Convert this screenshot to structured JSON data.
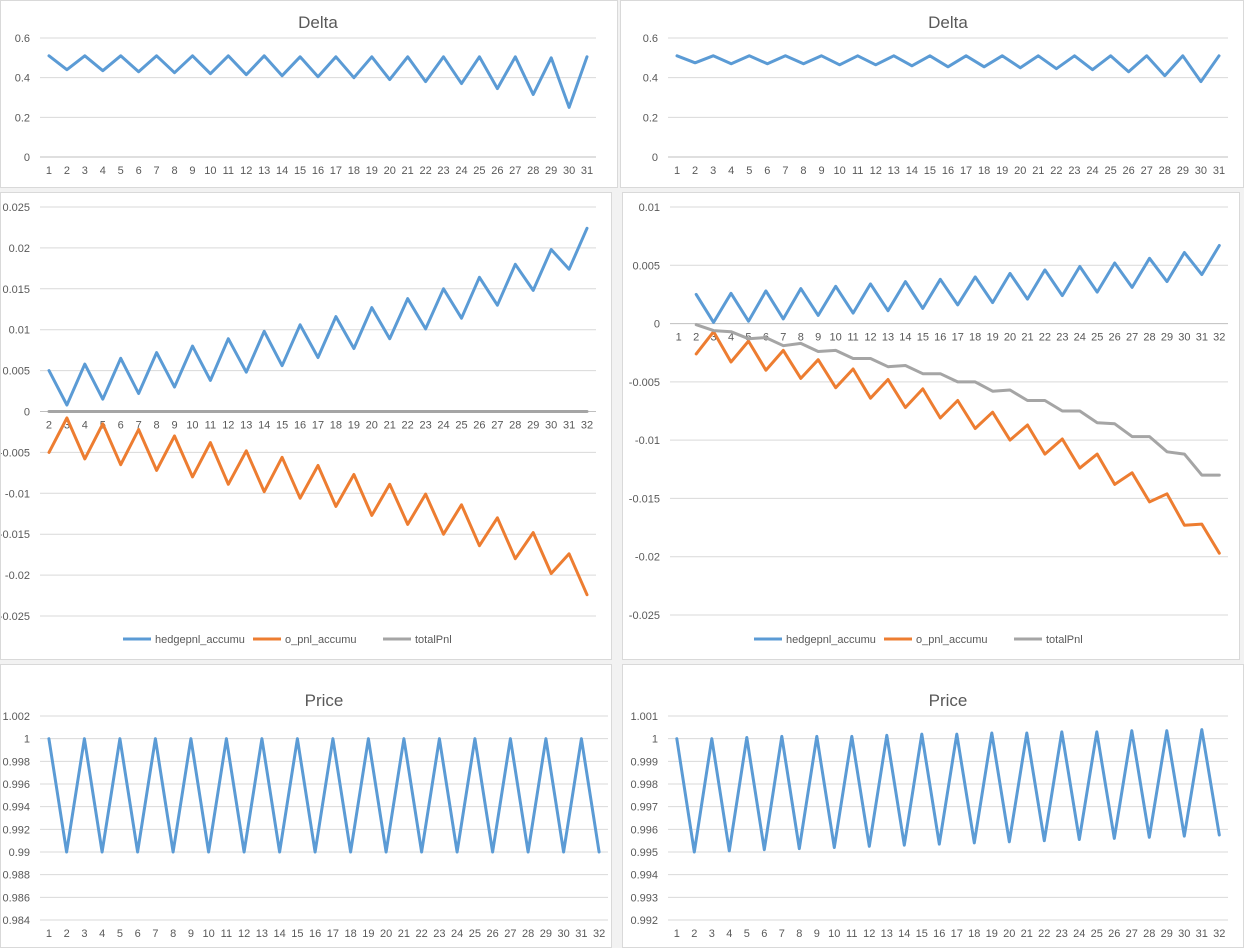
{
  "chart_data": [
    {
      "id": "delta-left",
      "type": "line",
      "title": "Delta",
      "xlabel": "",
      "ylabel": "",
      "categories": [
        "1",
        "2",
        "3",
        "4",
        "5",
        "6",
        "7",
        "8",
        "9",
        "10",
        "11",
        "12",
        "13",
        "14",
        "15",
        "16",
        "17",
        "18",
        "19",
        "20",
        "21",
        "22",
        "23",
        "24",
        "25",
        "26",
        "27",
        "28",
        "29",
        "30",
        "31"
      ],
      "ylim": [
        0,
        0.6
      ],
      "yticks": [
        0,
        0.2,
        0.4,
        0.6
      ],
      "ytick_labels": [
        "0",
        "0.2",
        "0.4",
        "0.6"
      ],
      "grid": true,
      "legend": "none",
      "series": [
        {
          "color": "#5b9bd5",
          "values": [
            0.51,
            0.44,
            0.51,
            0.435,
            0.51,
            0.43,
            0.51,
            0.425,
            0.51,
            0.42,
            0.51,
            0.415,
            0.51,
            0.41,
            0.505,
            0.405,
            0.505,
            0.4,
            0.505,
            0.39,
            0.505,
            0.38,
            0.505,
            0.37,
            0.505,
            0.345,
            0.505,
            0.315,
            0.5,
            0.25,
            0.505
          ]
        }
      ]
    },
    {
      "id": "delta-right",
      "type": "line",
      "title": "Delta",
      "xlabel": "",
      "ylabel": "",
      "categories": [
        "1",
        "2",
        "3",
        "4",
        "5",
        "6",
        "7",
        "8",
        "9",
        "10",
        "11",
        "12",
        "13",
        "14",
        "15",
        "16",
        "17",
        "18",
        "19",
        "20",
        "21",
        "22",
        "23",
        "24",
        "25",
        "26",
        "27",
        "28",
        "29",
        "30",
        "31"
      ],
      "ylim": [
        0,
        0.6
      ],
      "yticks": [
        0,
        0.2,
        0.4,
        0.6
      ],
      "ytick_labels": [
        "0",
        "0.2",
        "0.4",
        "0.6"
      ],
      "grid": true,
      "legend": "none",
      "series": [
        {
          "color": "#5b9bd5",
          "values": [
            0.51,
            0.475,
            0.51,
            0.47,
            0.51,
            0.47,
            0.51,
            0.47,
            0.51,
            0.465,
            0.51,
            0.465,
            0.51,
            0.46,
            0.51,
            0.455,
            0.51,
            0.455,
            0.51,
            0.45,
            0.51,
            0.445,
            0.51,
            0.44,
            0.51,
            0.43,
            0.51,
            0.41,
            0.51,
            0.38,
            0.51
          ]
        }
      ]
    },
    {
      "id": "pnl-left",
      "type": "line",
      "title": "",
      "xlabel": "",
      "ylabel": "",
      "categories": [
        "2",
        "3",
        "4",
        "5",
        "6",
        "7",
        "8",
        "9",
        "10",
        "11",
        "12",
        "13",
        "14",
        "15",
        "16",
        "17",
        "18",
        "19",
        "20",
        "21",
        "22",
        "23",
        "24",
        "25",
        "26",
        "27",
        "28",
        "29",
        "30",
        "31",
        "32"
      ],
      "ylim": [
        -0.025,
        0.025
      ],
      "yticks": [
        -0.025,
        -0.02,
        -0.015,
        -0.01,
        -0.005,
        0,
        0.005,
        0.01,
        0.015,
        0.02,
        0.025
      ],
      "ytick_labels": [
        "-0.025",
        "-0.02",
        "-0.015",
        "-0.01",
        "-0.005",
        "0",
        "0.005",
        "0.01",
        "0.015",
        "0.02",
        "0.025"
      ],
      "grid": true,
      "legend": "bottom",
      "series": [
        {
          "name": "hedgepnl_accumu",
          "color": "#5b9bd5",
          "values": [
            0.005,
            0.0008,
            0.0058,
            0.0015,
            0.0065,
            0.0022,
            0.0072,
            0.003,
            0.008,
            0.0038,
            0.0089,
            0.0048,
            0.0098,
            0.0056,
            0.0106,
            0.0066,
            0.0116,
            0.0077,
            0.0127,
            0.0089,
            0.0138,
            0.0101,
            0.015,
            0.0114,
            0.0164,
            0.013,
            0.018,
            0.0148,
            0.0198,
            0.0174,
            0.0224
          ]
        },
        {
          "name": "o_pnl_accumu",
          "color": "#ed7d31",
          "values": [
            -0.005,
            -0.0008,
            -0.0058,
            -0.0015,
            -0.0065,
            -0.0022,
            -0.0072,
            -0.003,
            -0.008,
            -0.0038,
            -0.0089,
            -0.0048,
            -0.0098,
            -0.0056,
            -0.0106,
            -0.0066,
            -0.0116,
            -0.0077,
            -0.0127,
            -0.0089,
            -0.0138,
            -0.0101,
            -0.015,
            -0.0114,
            -0.0164,
            -0.013,
            -0.018,
            -0.0148,
            -0.0198,
            -0.0174,
            -0.0224
          ]
        },
        {
          "name": "totalPnl",
          "color": "#a5a5a5",
          "values": [
            0,
            0,
            0,
            0,
            0,
            0,
            0,
            0,
            0,
            0,
            0,
            0,
            0,
            0,
            0,
            0,
            0,
            0,
            0,
            0,
            0,
            0,
            0,
            0,
            0,
            0,
            0,
            0,
            0,
            0,
            0
          ]
        }
      ]
    },
    {
      "id": "pnl-right",
      "type": "line",
      "title": "",
      "xlabel": "",
      "ylabel": "",
      "categories": [
        "1",
        "2",
        "3",
        "4",
        "5",
        "6",
        "7",
        "8",
        "9",
        "10",
        "11",
        "12",
        "13",
        "14",
        "15",
        "16",
        "17",
        "18",
        "19",
        "20",
        "21",
        "22",
        "23",
        "24",
        "25",
        "26",
        "27",
        "28",
        "29",
        "30",
        "31",
        "32"
      ],
      "ylim": [
        -0.025,
        0.01
      ],
      "yticks": [
        -0.025,
        -0.02,
        -0.015,
        -0.01,
        -0.005,
        0,
        0.005,
        0.01
      ],
      "ytick_labels": [
        "-0.025",
        "-0.02",
        "-0.015",
        "-0.01",
        "-0.005",
        "0",
        "0.005",
        "0.01"
      ],
      "grid": true,
      "legend": "bottom",
      "series": [
        {
          "name": "hedgepnl_accumu",
          "color": "#5b9bd5",
          "values": [
            null,
            0.0025,
            0.0001,
            0.0026,
            0.0002,
            0.0028,
            0.0004,
            0.003,
            0.0007,
            0.0032,
            0.0009,
            0.0034,
            0.0011,
            0.0036,
            0.0013,
            0.0038,
            0.0016,
            0.004,
            0.0018,
            0.0043,
            0.0021,
            0.0046,
            0.0024,
            0.0049,
            0.0027,
            0.0052,
            0.0031,
            0.0056,
            0.0036,
            0.0061,
            0.0042,
            0.0067
          ]
        },
        {
          "name": "o_pnl_accumu",
          "color": "#ed7d31",
          "values": [
            null,
            -0.0026,
            -0.0007,
            -0.0033,
            -0.0015,
            -0.004,
            -0.0023,
            -0.0047,
            -0.0031,
            -0.0055,
            -0.0039,
            -0.0064,
            -0.0048,
            -0.0072,
            -0.0056,
            -0.0081,
            -0.0066,
            -0.009,
            -0.0076,
            -0.01,
            -0.0087,
            -0.0112,
            -0.0099,
            -0.0124,
            -0.0112,
            -0.0138,
            -0.0128,
            -0.0153,
            -0.0146,
            -0.0173,
            -0.0172,
            -0.0197
          ]
        },
        {
          "name": "totalPnl",
          "color": "#a5a5a5",
          "values": [
            null,
            -0.0001,
            -0.0006,
            -0.0007,
            -0.0013,
            -0.0012,
            -0.0019,
            -0.0017,
            -0.0024,
            -0.0023,
            -0.003,
            -0.003,
            -0.0037,
            -0.0036,
            -0.0043,
            -0.0043,
            -0.005,
            -0.005,
            -0.0058,
            -0.0057,
            -0.0066,
            -0.0066,
            -0.0075,
            -0.0075,
            -0.0085,
            -0.0086,
            -0.0097,
            -0.0097,
            -0.011,
            -0.0112,
            -0.013,
            -0.013
          ]
        }
      ]
    },
    {
      "id": "price-left",
      "type": "line",
      "title": "Price",
      "xlabel": "",
      "ylabel": "",
      "categories": [
        "1",
        "2",
        "3",
        "4",
        "5",
        "6",
        "7",
        "8",
        "9",
        "10",
        "11",
        "12",
        "13",
        "14",
        "15",
        "16",
        "17",
        "18",
        "19",
        "20",
        "21",
        "22",
        "23",
        "24",
        "25",
        "26",
        "27",
        "28",
        "29",
        "30",
        "31",
        "32"
      ],
      "ylim": [
        0.984,
        1.002
      ],
      "yticks": [
        0.984,
        0.986,
        0.988,
        0.99,
        0.992,
        0.994,
        0.996,
        0.998,
        1,
        1.002
      ],
      "ytick_labels": [
        "0.984",
        "0.986",
        "0.988",
        "0.99",
        "0.992",
        "0.994",
        "0.996",
        "0.998",
        "1",
        "1.002"
      ],
      "grid": true,
      "legend": "none",
      "series": [
        {
          "color": "#5b9bd5",
          "values": [
            1,
            0.99,
            1,
            0.99,
            1,
            0.99,
            1,
            0.99,
            1,
            0.99,
            1,
            0.99,
            1,
            0.99,
            1,
            0.99,
            1,
            0.99,
            1,
            0.99,
            1,
            0.99,
            1,
            0.99,
            1,
            0.99,
            1,
            0.99,
            1,
            0.99,
            1,
            0.99
          ]
        }
      ]
    },
    {
      "id": "price-right",
      "type": "line",
      "title": "Price",
      "xlabel": "",
      "ylabel": "",
      "categories": [
        "1",
        "2",
        "3",
        "4",
        "5",
        "6",
        "7",
        "8",
        "9",
        "10",
        "11",
        "12",
        "13",
        "14",
        "15",
        "16",
        "17",
        "18",
        "19",
        "20",
        "21",
        "22",
        "23",
        "24",
        "25",
        "26",
        "27",
        "28",
        "29",
        "30",
        "31",
        "32"
      ],
      "ylim": [
        0.992,
        1.001
      ],
      "yticks": [
        0.992,
        0.993,
        0.994,
        0.995,
        0.996,
        0.997,
        0.998,
        0.999,
        1,
        1.001
      ],
      "ytick_labels": [
        "0.992",
        "0.993",
        "0.994",
        "0.995",
        "0.996",
        "0.997",
        "0.998",
        "0.999",
        "1",
        "1.001"
      ],
      "grid": true,
      "legend": "none",
      "series": [
        {
          "color": "#5b9bd5",
          "values": [
            1,
            0.995,
            1,
            0.99505,
            1.00005,
            0.9951,
            1.0001,
            0.99515,
            1.0001,
            0.9952,
            1.0001,
            0.99525,
            1.00015,
            0.9953,
            1.0002,
            0.99535,
            1.0002,
            0.9954,
            1.00025,
            0.99545,
            1.00025,
            0.9955,
            1.0003,
            0.99555,
            1.0003,
            0.9956,
            1.00035,
            0.99565,
            1.00035,
            0.9957,
            1.0004,
            0.99575
          ]
        }
      ]
    }
  ]
}
